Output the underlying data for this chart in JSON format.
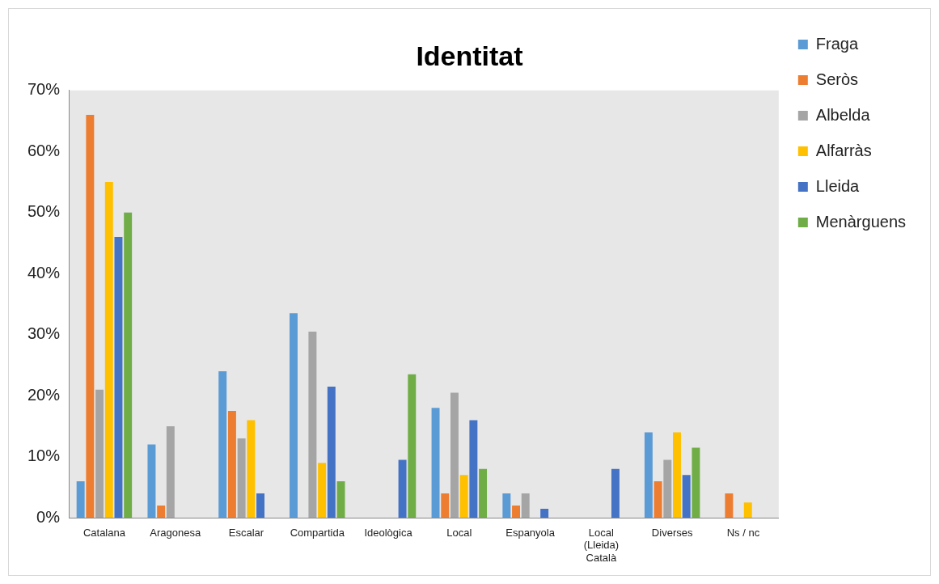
{
  "chart_data": {
    "type": "bar",
    "title": "Identitat",
    "categories": [
      "Catalana",
      "Aragonesa",
      "Escalar",
      "Compartida",
      "Ideològica",
      "Local",
      "Espanyola",
      "Local (Lleida) Català",
      "Diverses",
      "Ns / nc"
    ],
    "series": [
      {
        "name": "Fraga",
        "color": "#5b9bd5",
        "values": [
          6,
          12,
          24,
          33.5,
          0,
          18,
          4,
          0,
          14,
          0
        ]
      },
      {
        "name": "Seròs",
        "color": "#ed7d31",
        "values": [
          66,
          2,
          17.5,
          0,
          0,
          4,
          2,
          0,
          6,
          4
        ]
      },
      {
        "name": "Albelda",
        "color": "#a5a5a5",
        "values": [
          21,
          15,
          13,
          30.5,
          0,
          20.5,
          4,
          0,
          9.5,
          0
        ]
      },
      {
        "name": "Alfarràs",
        "color": "#ffc000",
        "values": [
          55,
          0,
          16,
          9,
          0,
          7,
          0,
          0,
          14,
          2.5
        ]
      },
      {
        "name": "Lleida",
        "color": "#4472c4",
        "values": [
          46,
          0,
          4,
          21.5,
          9.5,
          16,
          1.5,
          8,
          7,
          0
        ]
      },
      {
        "name": "Menàrguens",
        "color": "#70ad47",
        "values": [
          50,
          0,
          0,
          6,
          23.5,
          8,
          0,
          0,
          11.5,
          0
        ]
      }
    ],
    "ylim": [
      0,
      70
    ],
    "yticks": [
      {
        "value": 0,
        "label": "0%"
      },
      {
        "value": 10,
        "label": "10%"
      },
      {
        "value": 20,
        "label": "20%"
      },
      {
        "value": 30,
        "label": "30%"
      },
      {
        "value": 40,
        "label": "40%"
      },
      {
        "value": 50,
        "label": "50%"
      },
      {
        "value": 60,
        "label": "60%"
      },
      {
        "value": 70,
        "label": "70%"
      }
    ],
    "grid": false,
    "legend": "top right"
  }
}
